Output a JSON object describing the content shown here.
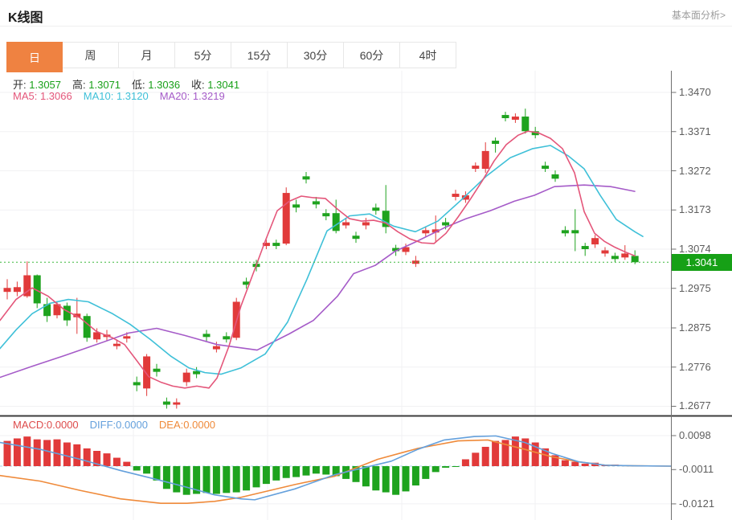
{
  "header": {
    "title": "K线图",
    "link": "基本面分析>"
  },
  "tabs": {
    "items": [
      {
        "label": "日",
        "active": true
      },
      {
        "label": "周",
        "active": false
      },
      {
        "label": "月",
        "active": false
      },
      {
        "label": "5分",
        "active": false
      },
      {
        "label": "15分",
        "active": false
      },
      {
        "label": "30分",
        "active": false
      },
      {
        "label": "60分",
        "active": false
      },
      {
        "label": "4时",
        "active": false
      }
    ]
  },
  "legend": {
    "open": {
      "label": "开:",
      "value": "1.3057"
    },
    "high": {
      "label": "高:",
      "value": "1.3071"
    },
    "low": {
      "label": "低:",
      "value": "1.3036"
    },
    "close": {
      "label": "收:",
      "value": "1.3041"
    },
    "ma5": {
      "label": "MA5:",
      "value": "1.3066"
    },
    "ma10": {
      "label": "MA10:",
      "value": "1.3120"
    },
    "ma20": {
      "label": "MA20:",
      "value": "1.3219"
    }
  },
  "macd_legend": {
    "macd": {
      "label": "MACD:",
      "value": "0.0000"
    },
    "diff": {
      "label": "DIFF:",
      "value": "0.0000"
    },
    "dea": {
      "label": "DEA:",
      "value": "0.0000"
    }
  },
  "colors": {
    "up": "#e13a3a",
    "down": "#1ea31e",
    "ma5": "#e4567a",
    "ma10": "#3fc0d8",
    "ma20": "#a55bc8",
    "macd_text": "#dd4b4b",
    "diff": "#64a0dc",
    "dea": "#ef8a3a",
    "tab_accent": "#ef8241",
    "badge": "#16a016",
    "dotted": "#3db83d",
    "grid": "#f1f1f3",
    "axis": "#6f6f6f",
    "separator": "#3c3c3c",
    "zero_dash": "#a8d8ec"
  },
  "chart_data": {
    "type": "candlestick",
    "title": "K线图",
    "price_axis": {
      "ticks": [
        1.347,
        1.3371,
        1.3272,
        1.3173,
        1.3074,
        1.2975,
        1.2875,
        1.2776,
        1.2677
      ]
    },
    "current_price": 1.3041,
    "last_ohlc": {
      "open": 1.3057,
      "high": 1.3071,
      "low": 1.3036,
      "close": 1.3041
    },
    "ma_values": {
      "ma5": 1.3066,
      "ma10": 1.312,
      "ma20": 1.3219
    },
    "candles": [
      [
        1.2966,
        1.2998,
        1.2947,
        1.2976
      ],
      [
        1.2966,
        1.2992,
        1.2955,
        1.2978
      ],
      [
        1.2955,
        1.3043,
        1.2951,
        1.3008
      ],
      [
        1.3008,
        1.301,
        1.2925,
        1.2937
      ],
      [
        1.2935,
        1.2951,
        1.289,
        1.2905
      ],
      [
        1.2907,
        1.2943,
        1.2899,
        1.2935
      ],
      [
        1.2931,
        1.2939,
        1.288,
        1.2894
      ],
      [
        1.2902,
        1.2951,
        1.286,
        1.2911
      ],
      [
        1.2905,
        1.2911,
        1.284,
        1.285
      ],
      [
        1.2846,
        1.2874,
        1.2838,
        1.2864
      ],
      [
        1.2852,
        1.287,
        1.2842,
        1.2858
      ],
      [
        1.2829,
        1.2846,
        1.2821,
        1.2835
      ],
      [
        1.2848,
        1.2864,
        1.2838,
        1.2854
      ],
      [
        1.2738,
        1.2752,
        1.2715,
        1.273
      ],
      [
        1.2722,
        1.2809,
        1.2703,
        1.2803
      ],
      [
        1.2772,
        1.2784,
        1.2752,
        1.2764
      ],
      [
        1.2689,
        1.2699,
        1.2671,
        1.2681
      ],
      [
        1.2681,
        1.2697,
        1.2671,
        1.2687
      ],
      [
        1.2738,
        1.2772,
        1.2728,
        1.2762
      ],
      [
        1.2766,
        1.2776,
        1.2748,
        1.2758
      ],
      [
        1.286,
        1.287,
        1.2842,
        1.2852
      ],
      [
        1.2821,
        1.284,
        1.2813,
        1.2829
      ],
      [
        1.2854,
        1.2864,
        1.2838,
        1.2846
      ],
      [
        1.285,
        1.2951,
        1.2844,
        1.2941
      ],
      [
        1.2992,
        1.3002,
        1.2974,
        1.2984
      ],
      [
        1.3037,
        1.3047,
        1.3018,
        1.3029
      ],
      [
        1.3082,
        1.3098,
        1.3074,
        1.309
      ],
      [
        1.309,
        1.3098,
        1.3074,
        1.3082
      ],
      [
        1.3088,
        1.323,
        1.3084,
        1.3216
      ],
      [
        1.3187,
        1.3199,
        1.3167,
        1.3179
      ],
      [
        1.3258,
        1.3269,
        1.324,
        1.325
      ],
      [
        1.3195,
        1.3206,
        1.3177,
        1.3187
      ],
      [
        1.3165,
        1.3175,
        1.3147,
        1.3157
      ],
      [
        1.3165,
        1.3199,
        1.3114,
        1.312
      ],
      [
        1.3134,
        1.3151,
        1.3126,
        1.3142
      ],
      [
        1.3108,
        1.3118,
        1.309,
        1.31
      ],
      [
        1.3134,
        1.3153,
        1.3124,
        1.3142
      ],
      [
        1.3179,
        1.3189,
        1.3161,
        1.3171
      ],
      [
        1.3171,
        1.3236,
        1.3114,
        1.313
      ],
      [
        1.3077,
        1.3085,
        1.3057,
        1.3069
      ],
      [
        1.3067,
        1.3088,
        1.3059,
        1.3079
      ],
      [
        1.3037,
        1.3057,
        1.3029,
        1.3045
      ],
      [
        1.3114,
        1.3132,
        1.3106,
        1.3122
      ],
      [
        1.3116,
        1.3159,
        1.309,
        1.3124
      ],
      [
        1.3142,
        1.3153,
        1.3124,
        1.3134
      ],
      [
        1.3206,
        1.3224,
        1.3197,
        1.3214
      ],
      [
        1.3199,
        1.322,
        1.3191,
        1.321
      ],
      [
        1.3277,
        1.3293,
        1.3269,
        1.3285
      ],
      [
        1.3277,
        1.3344,
        1.3267,
        1.3322
      ],
      [
        1.3348,
        1.3356,
        1.3318,
        1.334
      ],
      [
        1.3413,
        1.3421,
        1.3397,
        1.3405
      ],
      [
        1.3401,
        1.3417,
        1.3393,
        1.3409
      ],
      [
        1.3409,
        1.3429,
        1.3366,
        1.3372
      ],
      [
        1.3372,
        1.3383,
        1.3354,
        1.3362
      ],
      [
        1.3285,
        1.3295,
        1.3269,
        1.3277
      ],
      [
        1.3263,
        1.3273,
        1.3244,
        1.3252
      ],
      [
        1.3122,
        1.3132,
        1.3106,
        1.3114
      ],
      [
        1.3122,
        1.3175,
        1.3069,
        1.3114
      ],
      [
        1.3082,
        1.309,
        1.3057,
        1.3074
      ],
      [
        1.3086,
        1.311,
        1.3077,
        1.3102
      ],
      [
        1.3063,
        1.3079,
        1.3055,
        1.3071
      ],
      [
        1.3057,
        1.3065,
        1.3041,
        1.3049
      ],
      [
        1.3053,
        1.3084,
        1.3047,
        1.3063
      ],
      [
        1.3057,
        1.3071,
        1.3036,
        1.3041
      ]
    ],
    "ma5_points": [
      [
        0,
        1.2894
      ],
      [
        20,
        1.2947
      ],
      [
        40,
        1.2976
      ],
      [
        60,
        1.2955
      ],
      [
        80,
        1.2921
      ],
      [
        100,
        1.29
      ],
      [
        120,
        1.2866
      ],
      [
        140,
        1.285
      ],
      [
        155,
        1.2833
      ],
      [
        170,
        1.2793
      ],
      [
        185,
        1.2752
      ],
      [
        200,
        1.2738
      ],
      [
        215,
        1.2728
      ],
      [
        230,
        1.2723
      ],
      [
        245,
        1.2728
      ],
      [
        260,
        1.2723
      ],
      [
        270,
        1.2748
      ],
      [
        285,
        1.2829
      ],
      [
        300,
        1.2931
      ],
      [
        315,
        1.3012
      ],
      [
        330,
        1.3094
      ],
      [
        345,
        1.3171
      ],
      [
        360,
        1.3195
      ],
      [
        375,
        1.3208
      ],
      [
        390,
        1.3204
      ],
      [
        405,
        1.3202
      ],
      [
        420,
        1.3175
      ],
      [
        435,
        1.3151
      ],
      [
        450,
        1.3145
      ],
      [
        465,
        1.3147
      ],
      [
        480,
        1.314
      ],
      [
        495,
        1.3118
      ],
      [
        510,
        1.31
      ],
      [
        525,
        1.309
      ],
      [
        540,
        1.3088
      ],
      [
        555,
        1.3114
      ],
      [
        570,
        1.3155
      ],
      [
        585,
        1.3199
      ],
      [
        600,
        1.3246
      ],
      [
        615,
        1.3297
      ],
      [
        630,
        1.3338
      ],
      [
        645,
        1.3362
      ],
      [
        657,
        1.3372
      ],
      [
        670,
        1.3368
      ],
      [
        685,
        1.3354
      ],
      [
        700,
        1.3328
      ],
      [
        715,
        1.3267
      ],
      [
        727,
        1.3169
      ],
      [
        740,
        1.3114
      ],
      [
        752,
        1.3094
      ],
      [
        765,
        1.3079
      ],
      [
        778,
        1.3067
      ],
      [
        790,
        1.3057
      ]
    ],
    "ma10_points": [
      [
        0,
        1.2823
      ],
      [
        20,
        1.287
      ],
      [
        40,
        1.2911
      ],
      [
        62,
        1.2937
      ],
      [
        85,
        1.2947
      ],
      [
        110,
        1.2941
      ],
      [
        140,
        1.2911
      ],
      [
        162,
        1.2884
      ],
      [
        187,
        1.2846
      ],
      [
        213,
        1.2803
      ],
      [
        235,
        1.2774
      ],
      [
        255,
        1.2762
      ],
      [
        275,
        1.2758
      ],
      [
        300,
        1.2774
      ],
      [
        330,
        1.2809
      ],
      [
        358,
        1.289
      ],
      [
        382,
        1.2998
      ],
      [
        407,
        1.312
      ],
      [
        435,
        1.3158
      ],
      [
        460,
        1.3163
      ],
      [
        490,
        1.3132
      ],
      [
        517,
        1.3118
      ],
      [
        545,
        1.3145
      ],
      [
        575,
        1.32
      ],
      [
        605,
        1.3258
      ],
      [
        635,
        1.3305
      ],
      [
        663,
        1.3328
      ],
      [
        685,
        1.3336
      ],
      [
        707,
        1.331
      ],
      [
        727,
        1.3277
      ],
      [
        747,
        1.321
      ],
      [
        767,
        1.3149
      ],
      [
        790,
        1.3118
      ],
      [
        800,
        1.3106
      ]
    ],
    "ma20_points": [
      [
        0,
        1.275
      ],
      [
        40,
        1.2778
      ],
      [
        80,
        1.2805
      ],
      [
        120,
        1.2833
      ],
      [
        160,
        1.2862
      ],
      [
        195,
        1.2874
      ],
      [
        230,
        1.2856
      ],
      [
        270,
        1.2833
      ],
      [
        320,
        1.2819
      ],
      [
        360,
        1.286
      ],
      [
        390,
        1.2894
      ],
      [
        420,
        1.2955
      ],
      [
        440,
        1.3012
      ],
      [
        467,
        1.3033
      ],
      [
        492,
        1.3069
      ],
      [
        517,
        1.3092
      ],
      [
        553,
        1.3128
      ],
      [
        580,
        1.3151
      ],
      [
        610,
        1.3171
      ],
      [
        640,
        1.3195
      ],
      [
        665,
        1.321
      ],
      [
        690,
        1.3232
      ],
      [
        727,
        1.3236
      ],
      [
        760,
        1.3232
      ],
      [
        790,
        1.322
      ]
    ],
    "macd": {
      "axis_ticks": [
        0.0098,
        -0.0011,
        -0.0121
      ],
      "values": {
        "macd": 0.0,
        "diff": 0.0,
        "dea": 0.0
      },
      "histogram": [
        0.0081,
        0.0089,
        0.0095,
        0.0086,
        0.0084,
        0.0086,
        0.0076,
        0.007,
        0.0057,
        0.0049,
        0.0041,
        0.0027,
        0.0014,
        -0.0014,
        -0.0024,
        -0.0046,
        -0.0073,
        -0.0084,
        -0.0092,
        -0.0089,
        -0.0086,
        -0.0089,
        -0.0086,
        -0.0084,
        -0.0078,
        -0.0068,
        -0.0057,
        -0.0046,
        -0.0038,
        -0.0035,
        -0.003,
        -0.0024,
        -0.0027,
        -0.0032,
        -0.0041,
        -0.0051,
        -0.0065,
        -0.0078,
        -0.0084,
        -0.0092,
        -0.0081,
        -0.0062,
        -0.0041,
        -0.0019,
        -0.0005,
        -0.0002,
        0.0022,
        0.0043,
        0.0062,
        0.0081,
        0.0084,
        0.0095,
        0.0089,
        0.0076,
        0.0057,
        0.0035,
        0.0019,
        0.0014,
        0.0008,
        0.0011,
        0.0005,
        0.0005,
        0.0003,
        0.0001
      ],
      "diff_points": [
        [
          0,
          0.0076
        ],
        [
          50,
          0.0054
        ],
        [
          100,
          0.0022
        ],
        [
          150,
          -0.0014
        ],
        [
          200,
          -0.0046
        ],
        [
          233,
          -0.0068
        ],
        [
          267,
          -0.0092
        ],
        [
          300,
          -0.0105
        ],
        [
          317,
          -0.0108
        ],
        [
          367,
          -0.0073
        ],
        [
          417,
          -0.0027
        ],
        [
          453,
          -0.0005
        ],
        [
          487,
          0.0016
        ],
        [
          520,
          0.0054
        ],
        [
          553,
          0.0084
        ],
        [
          590,
          0.0095
        ],
        [
          617,
          0.0097
        ],
        [
          653,
          0.0076
        ],
        [
          687,
          0.0041
        ],
        [
          720,
          0.0014
        ],
        [
          753,
          0.0003
        ],
        [
          790,
          0.0001
        ],
        [
          835,
          0.0
        ]
      ],
      "dea_points": [
        [
          0,
          -0.003
        ],
        [
          50,
          -0.0048
        ],
        [
          100,
          -0.0078
        ],
        [
          150,
          -0.0105
        ],
        [
          200,
          -0.0119
        ],
        [
          233,
          -0.0119
        ],
        [
          267,
          -0.0113
        ],
        [
          300,
          -0.01
        ],
        [
          367,
          -0.0059
        ],
        [
          417,
          -0.0032
        ],
        [
          470,
          0.0022
        ],
        [
          520,
          0.0057
        ],
        [
          570,
          0.0081
        ],
        [
          607,
          0.0084
        ],
        [
          653,
          0.0054
        ],
        [
          687,
          0.003
        ],
        [
          720,
          0.0014
        ],
        [
          753,
          0.0003
        ],
        [
          790,
          0.0001
        ],
        [
          835,
          0.0
        ]
      ]
    }
  }
}
